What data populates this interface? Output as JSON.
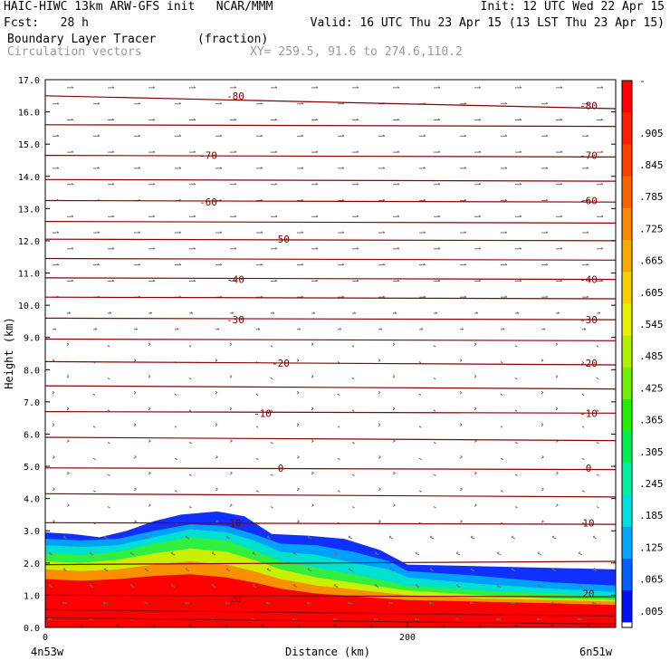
{
  "header": {
    "line1_left": "HAIC-HIWC 13km ARW-GFS init   NCAR/MMM",
    "line1_right": "Init: 12 UTC Wed 22 Apr 15",
    "line2_left": "Fcst:   28 h",
    "line2_right": "Valid: 16 UTC Thu 23 Apr 15 (13 LST Thu 23 Apr 15)",
    "field_name": "Boundary Layer Tracer",
    "field_units": "(fraction)",
    "vector_label": "Circulation vectors",
    "xy_label": "XY= 259.5, 91.6 to 274.6,110.2"
  },
  "colors": {
    "contour": "#8b0000",
    "vector": "#707070"
  },
  "chart_data": {
    "type": "heatmap",
    "ylabel": "Height (km)",
    "xlabel": "Distance (km)",
    "ylim": [
      0,
      17
    ],
    "xlim": [
      0,
      315
    ],
    "y_ticks": [
      "0.0",
      "1.0",
      "2.0",
      "3.0",
      "4.0",
      "5.0",
      "6.0",
      "7.0",
      "8.0",
      "9.0",
      "10.0",
      "11.0",
      "12.0",
      "13.0",
      "14.0",
      "15.0",
      "16.0",
      "17.0"
    ],
    "x_ticks": [
      {
        "v": 0,
        "label": "0"
      },
      {
        "v": 200,
        "label": "200"
      }
    ],
    "x_left_label": "4n53w",
    "x_right_label": "6n51w",
    "colorbar": {
      "labels": [
        "-",
        ".905",
        ".845",
        ".785",
        ".725",
        ".665",
        ".605",
        ".545",
        ".485",
        ".425",
        ".365",
        ".305",
        ".245",
        ".185",
        ".125",
        ".065",
        ".005"
      ],
      "colors": [
        "#ff0000",
        "#fe2000",
        "#fd3f00",
        "#fb6200",
        "#fa8800",
        "#f9aa00",
        "#f6d000",
        "#e6f000",
        "#b0f000",
        "#70ef00",
        "#20ef00",
        "#00ef50",
        "#00efa0",
        "#00e0e0",
        "#00a8ff",
        "#0060ff",
        "#0010f0"
      ],
      "bottom_color": "#ffffff"
    },
    "tracer_layers": [
      {
        "color": "#1030ff",
        "top": [
          [
            0,
            2.95
          ],
          [
            15,
            2.9
          ],
          [
            30,
            2.8
          ],
          [
            45,
            3.0
          ],
          [
            60,
            3.3
          ],
          [
            75,
            3.5
          ],
          [
            95,
            3.6
          ],
          [
            110,
            3.45
          ],
          [
            125,
            2.9
          ],
          [
            145,
            2.85
          ],
          [
            165,
            2.75
          ],
          [
            185,
            2.4
          ],
          [
            200,
            1.95
          ],
          [
            240,
            1.9
          ],
          [
            280,
            1.85
          ],
          [
            315,
            1.8
          ]
        ]
      },
      {
        "color": "#00a0ff",
        "top": [
          [
            0,
            2.75
          ],
          [
            20,
            2.7
          ],
          [
            40,
            2.75
          ],
          [
            60,
            3.0
          ],
          [
            80,
            3.2
          ],
          [
            100,
            3.15
          ],
          [
            115,
            2.9
          ],
          [
            130,
            2.6
          ],
          [
            150,
            2.55
          ],
          [
            170,
            2.35
          ],
          [
            190,
            2.05
          ],
          [
            200,
            1.75
          ],
          [
            240,
            1.6
          ],
          [
            280,
            1.4
          ],
          [
            315,
            1.3
          ]
        ]
      },
      {
        "color": "#00e0d0",
        "top": [
          [
            0,
            2.55
          ],
          [
            20,
            2.5
          ],
          [
            40,
            2.55
          ],
          [
            60,
            2.8
          ],
          [
            80,
            3.05
          ],
          [
            100,
            2.95
          ],
          [
            115,
            2.7
          ],
          [
            130,
            2.35
          ],
          [
            150,
            2.25
          ],
          [
            170,
            2.0
          ],
          [
            190,
            1.8
          ],
          [
            200,
            1.55
          ],
          [
            240,
            1.35
          ],
          [
            280,
            1.2
          ],
          [
            315,
            1.1
          ]
        ]
      },
      {
        "color": "#30ef40",
        "top": [
          [
            0,
            2.3
          ],
          [
            20,
            2.25
          ],
          [
            40,
            2.35
          ],
          [
            60,
            2.6
          ],
          [
            80,
            2.8
          ],
          [
            100,
            2.7
          ],
          [
            115,
            2.4
          ],
          [
            130,
            2.05
          ],
          [
            150,
            1.85
          ],
          [
            175,
            1.6
          ],
          [
            200,
            1.3
          ],
          [
            240,
            1.15
          ],
          [
            280,
            1.05
          ],
          [
            315,
            0.95
          ]
        ]
      },
      {
        "color": "#c8f000",
        "top": [
          [
            0,
            2.05
          ],
          [
            20,
            2.0
          ],
          [
            40,
            2.1
          ],
          [
            60,
            2.3
          ],
          [
            80,
            2.45
          ],
          [
            100,
            2.35
          ],
          [
            115,
            2.1
          ],
          [
            130,
            1.8
          ],
          [
            150,
            1.55
          ],
          [
            175,
            1.35
          ],
          [
            200,
            1.15
          ],
          [
            240,
            1.0
          ],
          [
            280,
            0.9
          ],
          [
            315,
            0.85
          ]
        ]
      },
      {
        "color": "#fa9000",
        "top": [
          [
            0,
            1.8
          ],
          [
            20,
            1.75
          ],
          [
            40,
            1.8
          ],
          [
            60,
            1.95
          ],
          [
            80,
            2.05
          ],
          [
            100,
            1.95
          ],
          [
            115,
            1.75
          ],
          [
            130,
            1.5
          ],
          [
            150,
            1.3
          ],
          [
            175,
            1.15
          ],
          [
            200,
            1.0
          ],
          [
            240,
            0.9
          ],
          [
            280,
            0.85
          ],
          [
            315,
            0.8
          ]
        ]
      },
      {
        "color": "#ff0000",
        "top": [
          [
            0,
            1.5
          ],
          [
            20,
            1.45
          ],
          [
            40,
            1.5
          ],
          [
            60,
            1.6
          ],
          [
            80,
            1.65
          ],
          [
            100,
            1.55
          ],
          [
            115,
            1.4
          ],
          [
            130,
            1.2
          ],
          [
            150,
            1.05
          ],
          [
            175,
            0.95
          ],
          [
            200,
            0.85
          ],
          [
            240,
            0.8
          ],
          [
            280,
            0.75
          ],
          [
            315,
            0.7
          ]
        ]
      }
    ],
    "contour_lines": [
      {
        "left": 0.3,
        "right": 0.1
      },
      {
        "left": 0.55,
        "right": 0.35
      },
      {
        "left": 1.0,
        "right": 0.95
      },
      {
        "left": 1.95,
        "right": 2.05
      },
      {
        "left": 3.25,
        "right": 3.2
      },
      {
        "left": 4.15,
        "right": 4.05
      },
      {
        "left": 4.95,
        "right": 4.9
      },
      {
        "left": 5.9,
        "right": 5.8
      },
      {
        "left": 6.7,
        "right": 6.65
      },
      {
        "left": 7.5,
        "right": 7.4
      },
      {
        "left": 8.25,
        "right": 8.15
      },
      {
        "left": 8.95,
        "right": 8.9
      },
      {
        "left": 9.6,
        "right": 9.55
      },
      {
        "left": 10.25,
        "right": 10.2
      },
      {
        "left": 10.85,
        "right": 10.8
      },
      {
        "left": 11.45,
        "right": 11.4
      },
      {
        "left": 12.05,
        "right": 12.0
      },
      {
        "left": 12.6,
        "right": 12.55
      },
      {
        "left": 13.25,
        "right": 13.2
      },
      {
        "left": 13.9,
        "right": 13.85
      },
      {
        "left": 14.65,
        "right": 14.6
      },
      {
        "left": 15.6,
        "right": 15.55
      },
      {
        "left": 16.5,
        "right": 16.1
      }
    ],
    "contour_labels": [
      {
        "x": 105,
        "y": 16.5,
        "text": "-80"
      },
      {
        "x": 300,
        "y": 16.2,
        "text": "-80"
      },
      {
        "x": 90,
        "y": 14.65,
        "text": "-70"
      },
      {
        "x": 300,
        "y": 14.65,
        "text": "-70"
      },
      {
        "x": 90,
        "y": 13.2,
        "text": "-60"
      },
      {
        "x": 300,
        "y": 13.25,
        "text": "-60"
      },
      {
        "x": 130,
        "y": 12.05,
        "text": "-50"
      },
      {
        "x": 105,
        "y": 10.8,
        "text": "-40"
      },
      {
        "x": 300,
        "y": 10.8,
        "text": "-40"
      },
      {
        "x": 105,
        "y": 9.55,
        "text": "-30"
      },
      {
        "x": 300,
        "y": 9.55,
        "text": "-30"
      },
      {
        "x": 130,
        "y": 8.2,
        "text": "-20"
      },
      {
        "x": 300,
        "y": 8.2,
        "text": "-20"
      },
      {
        "x": 120,
        "y": 6.65,
        "text": "-10"
      },
      {
        "x": 300,
        "y": 6.65,
        "text": "-10"
      },
      {
        "x": 130,
        "y": 4.95,
        "text": "0"
      },
      {
        "x": 300,
        "y": 4.95,
        "text": "0"
      },
      {
        "x": 105,
        "y": 3.25,
        "text": "10"
      },
      {
        "x": 300,
        "y": 3.25,
        "text": "10"
      },
      {
        "x": 105,
        "y": 0.9,
        "text": "20"
      },
      {
        "x": 300,
        "y": 1.05,
        "text": "20"
      }
    ]
  }
}
